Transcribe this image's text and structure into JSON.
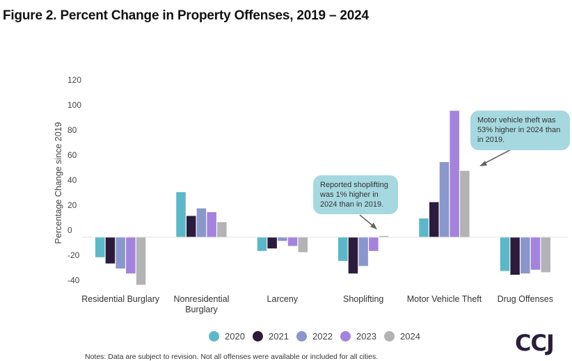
{
  "title": "Figure 2. Percent Change in Property Offenses, 2019 – 2024",
  "notes": "Notes: Data are subject to revision. Not all offenses were available or included for all cities.",
  "logo_text": "CCJ",
  "colors": {
    "2020": "#5bb8c9",
    "2021": "#2d1b3d",
    "2022": "#8a97cc",
    "2023": "#a483de",
    "2024": "#b3b3b6"
  },
  "callouts": [
    {
      "text": "Reported shoplifting was 1% higher in 2024 than in 2019."
    },
    {
      "text": "Motor vehicle theft was 53% higher in 2024 than in 2019."
    }
  ],
  "chart_data": {
    "type": "bar",
    "title": "Figure 2. Percent Change in Property Offenses, 2019 – 2024",
    "xlabel": "",
    "ylabel": "Percentage Change since 2019",
    "ylim": [
      -40,
      120
    ],
    "yticks": [
      120,
      100,
      80,
      60,
      40,
      20,
      0,
      -20,
      -40
    ],
    "legend_position": "bottom",
    "grid": false,
    "categories": [
      [
        "Residential Burglary"
      ],
      [
        "Nonresidential",
        "Burglary"
      ],
      [
        "Larceny"
      ],
      [
        "Shoplifting"
      ],
      [
        "Motor Vehicle Theft"
      ],
      [
        "Drug Offenses"
      ]
    ],
    "series": [
      {
        "name": "2020",
        "values": [
          -16,
          36,
          -11,
          -19,
          15,
          -27
        ]
      },
      {
        "name": "2021",
        "values": [
          -21,
          17,
          -9,
          -29,
          28,
          -30
        ]
      },
      {
        "name": "2022",
        "values": [
          -25,
          23,
          -3,
          -23,
          60,
          -29
        ]
      },
      {
        "name": "2023",
        "values": [
          -29,
          20,
          -7,
          -11,
          101,
          -26
        ]
      },
      {
        "name": "2024",
        "values": [
          -38,
          12,
          -12,
          1,
          53,
          -28
        ]
      }
    ]
  }
}
